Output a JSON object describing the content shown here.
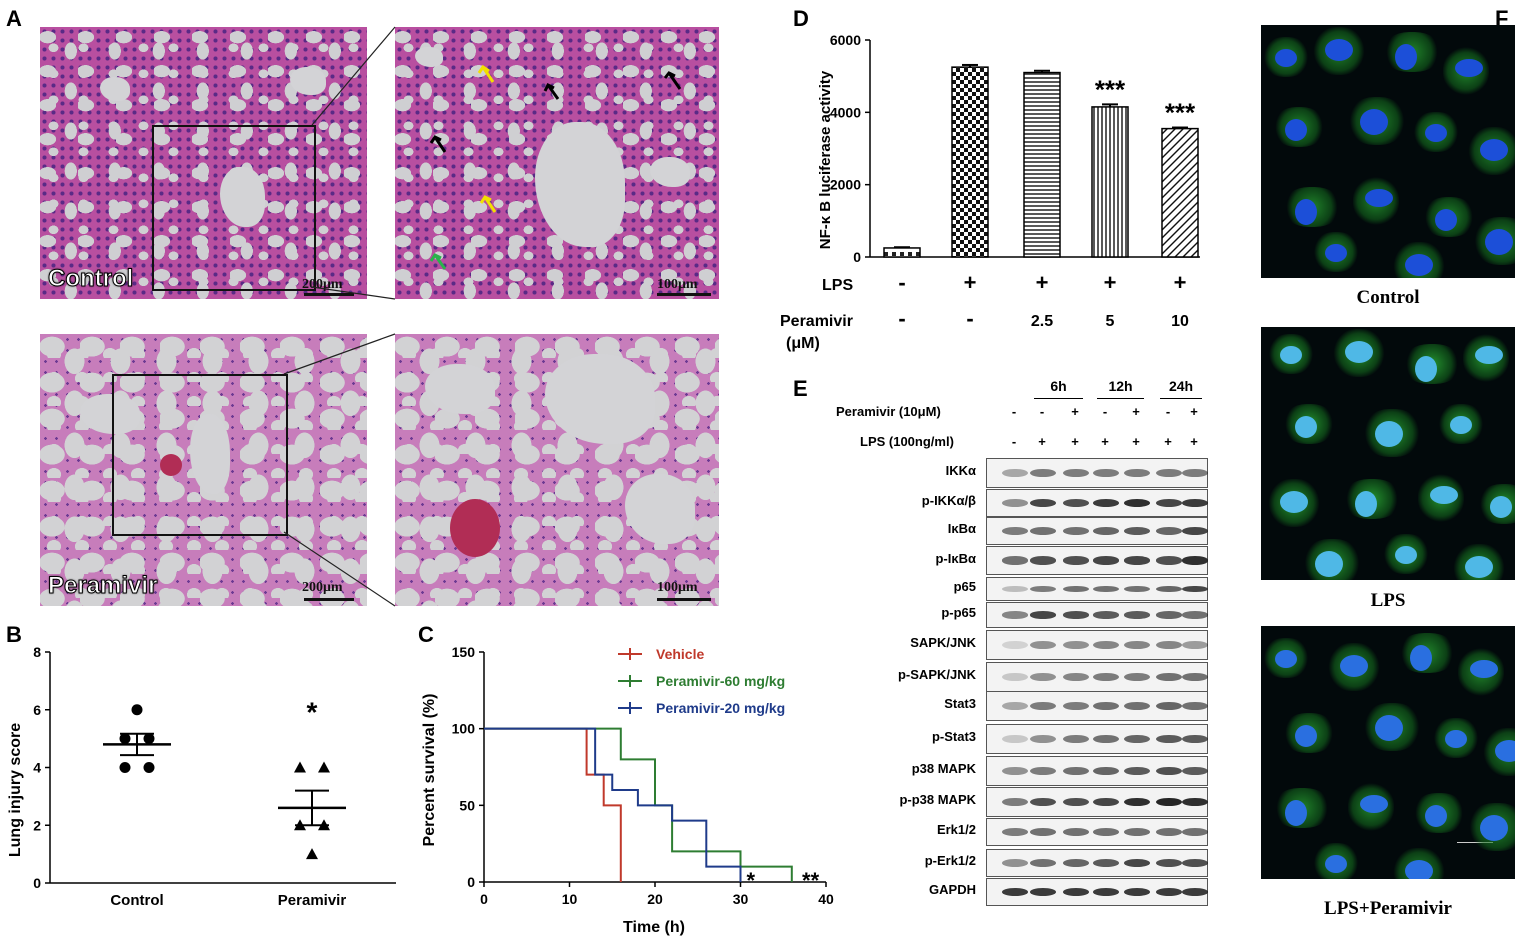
{
  "panels": {
    "A": "A",
    "B": "B",
    "C": "C",
    "D": "D",
    "E": "E",
    "F": "F"
  },
  "panelA": {
    "control_label": "Control",
    "peramivir_label": "Peramivir",
    "scale_200": "200μm",
    "scale_100": "100μm"
  },
  "colors": {
    "vehicle": "#c0392b",
    "p60": "#2e7d32",
    "p20": "#1f3b8a",
    "arrow_black": "#000000",
    "arrow_yellow": "#f2e000",
    "arrow_green": "#2bb24c"
  },
  "chart_data": [
    {
      "panel": "B",
      "type": "scatter",
      "categories": [
        "Control",
        "Peramivir"
      ],
      "ylabel": "Lung injury score",
      "ylim": [
        0,
        8
      ],
      "yticks": [
        "0",
        "2",
        "4",
        "6",
        "8"
      ],
      "series": [
        {
          "name": "Control",
          "values": [
            6,
            5,
            4,
            4,
            5
          ],
          "mean": 4.8,
          "sem": 0.37
        },
        {
          "name": "Peramivir",
          "values": [
            4,
            4,
            2,
            2,
            1
          ],
          "mean": 2.6,
          "sem": 0.6
        }
      ],
      "annotations": [
        "*"
      ]
    },
    {
      "panel": "C",
      "type": "line",
      "xlabel": "Time (h)",
      "ylabel": "Percent survival (%)",
      "xlim": [
        0,
        40
      ],
      "ylim": [
        0,
        150
      ],
      "xticks": [
        "0",
        "10",
        "20",
        "30",
        "40"
      ],
      "yticks": [
        "0",
        "50",
        "100",
        "150"
      ],
      "series": [
        {
          "name": "Vehicle",
          "points": [
            [
              0,
              100
            ],
            [
              12,
              100
            ],
            [
              12,
              70
            ],
            [
              14,
              70
            ],
            [
              14,
              50
            ],
            [
              16,
              50
            ],
            [
              16,
              0
            ]
          ]
        },
        {
          "name": "Peramivir-60 mg/kg",
          "points": [
            [
              0,
              100
            ],
            [
              16,
              100
            ],
            [
              16,
              80
            ],
            [
              20,
              80
            ],
            [
              20,
              50
            ],
            [
              22,
              50
            ],
            [
              22,
              20
            ],
            [
              30,
              20
            ],
            [
              30,
              10
            ],
            [
              36,
              10
            ],
            [
              36,
              0
            ]
          ]
        },
        {
          "name": "Peramivir-20 mg/kg",
          "points": [
            [
              0,
              100
            ],
            [
              13,
              100
            ],
            [
              13,
              70
            ],
            [
              15,
              70
            ],
            [
              15,
              60
            ],
            [
              18,
              60
            ],
            [
              18,
              50
            ],
            [
              22,
              50
            ],
            [
              22,
              40
            ],
            [
              26,
              40
            ],
            [
              26,
              10
            ],
            [
              30,
              10
            ],
            [
              30,
              0
            ]
          ]
        }
      ],
      "annotations": [
        "*",
        "**"
      ]
    },
    {
      "panel": "D",
      "type": "bar",
      "ylabel": "NF-κ B luciferase activity",
      "ylim": [
        0,
        6000
      ],
      "yticks": [
        "0",
        "2000",
        "4000",
        "6000"
      ],
      "values": [
        250,
        5250,
        5100,
        4150,
        3550
      ],
      "errors": [
        20,
        60,
        50,
        70,
        30
      ],
      "significance": [
        "",
        "",
        "",
        "***",
        "***"
      ],
      "rows": [
        {
          "label": "LPS",
          "cells": [
            "-",
            "+",
            "+",
            "+",
            "+"
          ]
        },
        {
          "label": "Peramivir",
          "sublabel": "(μM)",
          "cells": [
            "-",
            "-",
            "2.5",
            "5",
            "10"
          ]
        }
      ]
    }
  ],
  "panelE": {
    "timepoints": [
      "6h",
      "12h",
      "24h"
    ],
    "peramivir_label": "Peramivir (10μM)",
    "peramivir_signs": [
      "-",
      "-",
      "+",
      "-",
      "+",
      "-",
      "+"
    ],
    "lps_label": "LPS (100ng/ml)",
    "lps_signs": [
      "-",
      "+",
      "+",
      "+",
      "+",
      "+",
      "+"
    ],
    "proteins": [
      "IKKα",
      "p-IKKα/β",
      "IκBα",
      "p-IκBα",
      "p65",
      "p-p65",
      "SAPK/JNK",
      "p-SAPK/JNK",
      "Stat3",
      "p-Stat3",
      "p38 MAPK",
      "p-p38 MAPK",
      "Erk1/2",
      "p-Erk1/2",
      "GAPDH"
    ]
  },
  "panelF": {
    "captions": [
      "Control",
      "LPS",
      "LPS+Peramivir"
    ]
  }
}
